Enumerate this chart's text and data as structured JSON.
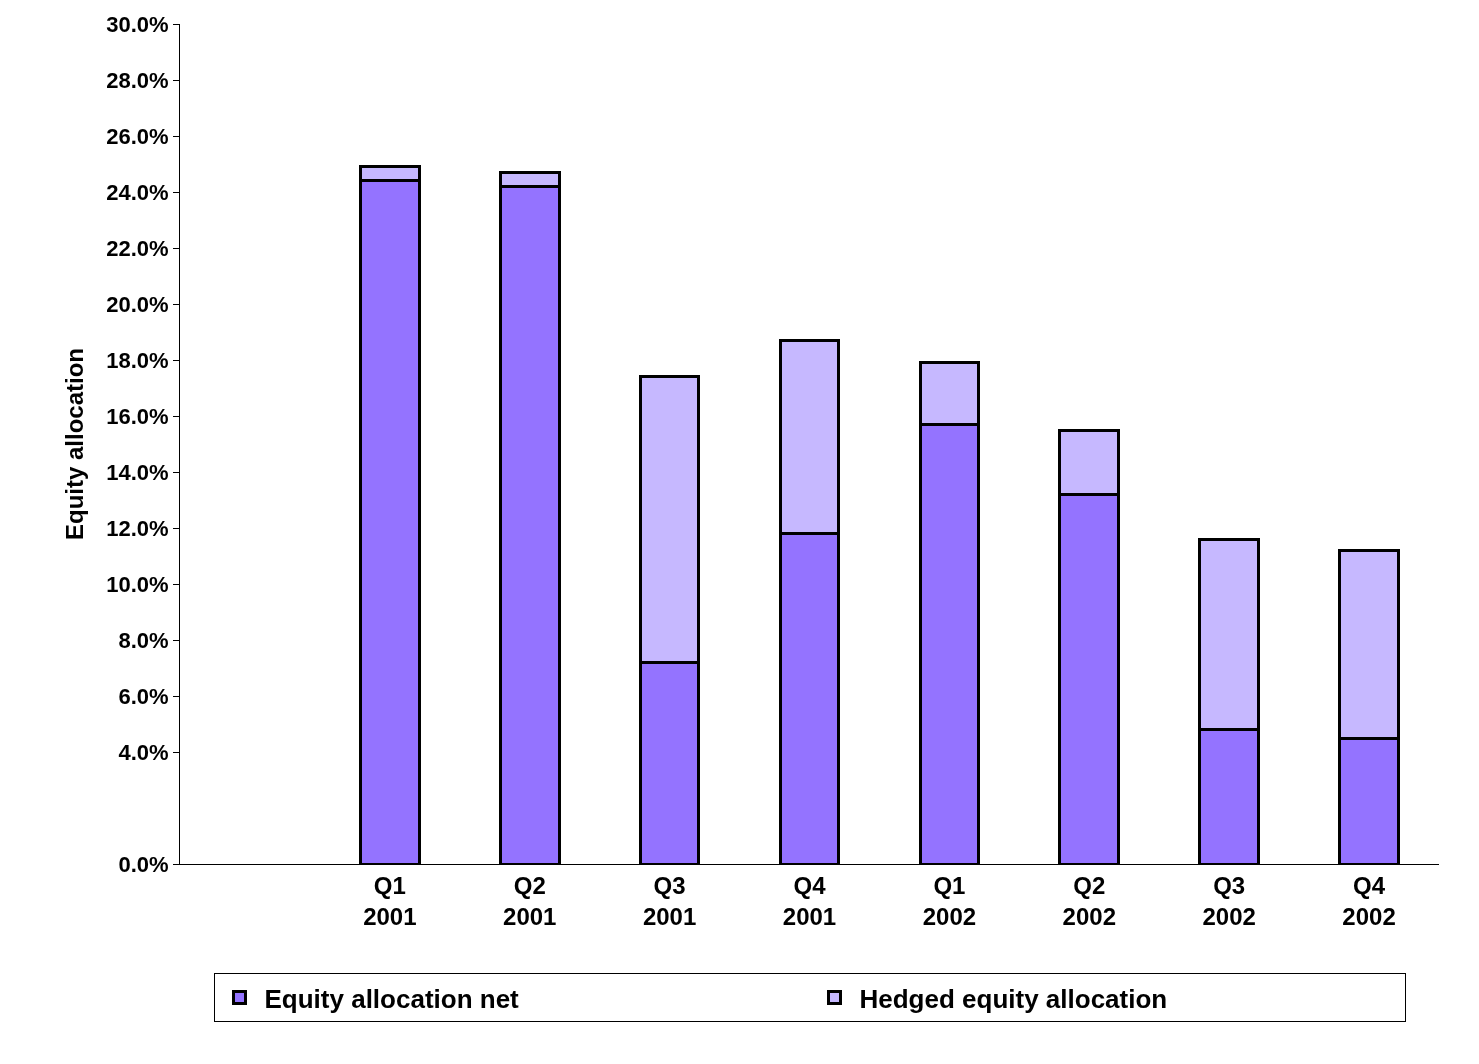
{
  "chart_data": {
    "type": "bar",
    "stacked": true,
    "ylabel": "Equity allocation",
    "categories": [
      null,
      "Q1\n2001",
      "Q2\n2001",
      "Q3\n2001",
      "Q4\n2001",
      "Q1\n2002",
      "Q2\n2002",
      "Q3\n2002",
      "Q4\n2002"
    ],
    "series": [
      {
        "name": "Equity allocation net",
        "color": "#9473ff",
        "values": [
          null,
          24.4,
          24.2,
          7.2,
          11.8,
          15.7,
          13.2,
          4.8,
          4.5
        ]
      },
      {
        "name": "Hedged equity allocation",
        "color": "#c6b8ff",
        "values": [
          null,
          0.5,
          0.5,
          10.2,
          6.9,
          2.2,
          2.3,
          6.8,
          6.7
        ]
      }
    ],
    "ylim": [
      0,
      30
    ],
    "yticks": [
      {
        "value": 0,
        "label": "0.0%"
      },
      {
        "value": 4,
        "label": "4.0%"
      },
      {
        "value": 6,
        "label": "6.0%"
      },
      {
        "value": 8,
        "label": "8.0%"
      },
      {
        "value": 10,
        "label": "10.0%"
      },
      {
        "value": 12,
        "label": "12.0%"
      },
      {
        "value": 14,
        "label": "14.0%"
      },
      {
        "value": 16,
        "label": "16.0%"
      },
      {
        "value": 18,
        "label": "18.0%"
      },
      {
        "value": 20,
        "label": "20.0%"
      },
      {
        "value": 22,
        "label": "22.0%"
      },
      {
        "value": 24,
        "label": "24.0%"
      },
      {
        "value": 26,
        "label": "26.0%"
      },
      {
        "value": 28,
        "label": "28.0%"
      },
      {
        "value": 30,
        "label": "30.0%"
      }
    ],
    "legend": "bottom"
  }
}
